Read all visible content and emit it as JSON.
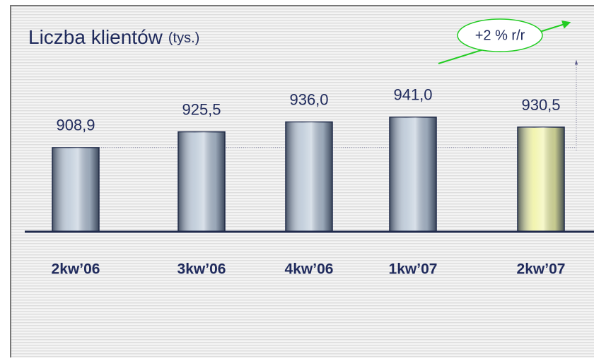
{
  "chart_data": {
    "type": "bar",
    "title": "Liczba klientów",
    "subtitle": "(tys.)",
    "annotation": "+2 % r/r",
    "categories": [
      "2kw’06",
      "3kw’06",
      "4kw’06",
      "1kw’07",
      "2kw’07"
    ],
    "values": [
      908.9,
      925.5,
      936.0,
      941.0,
      930.5
    ],
    "value_labels": [
      "908,9",
      "925,5",
      "936,0",
      "941,0",
      "930,5"
    ],
    "colors": [
      "#b9c7d6",
      "#b9c7d6",
      "#b9c7d6",
      "#b9c7d6",
      "#f0f2a2"
    ],
    "ylim": [
      820,
      1035
    ]
  }
}
